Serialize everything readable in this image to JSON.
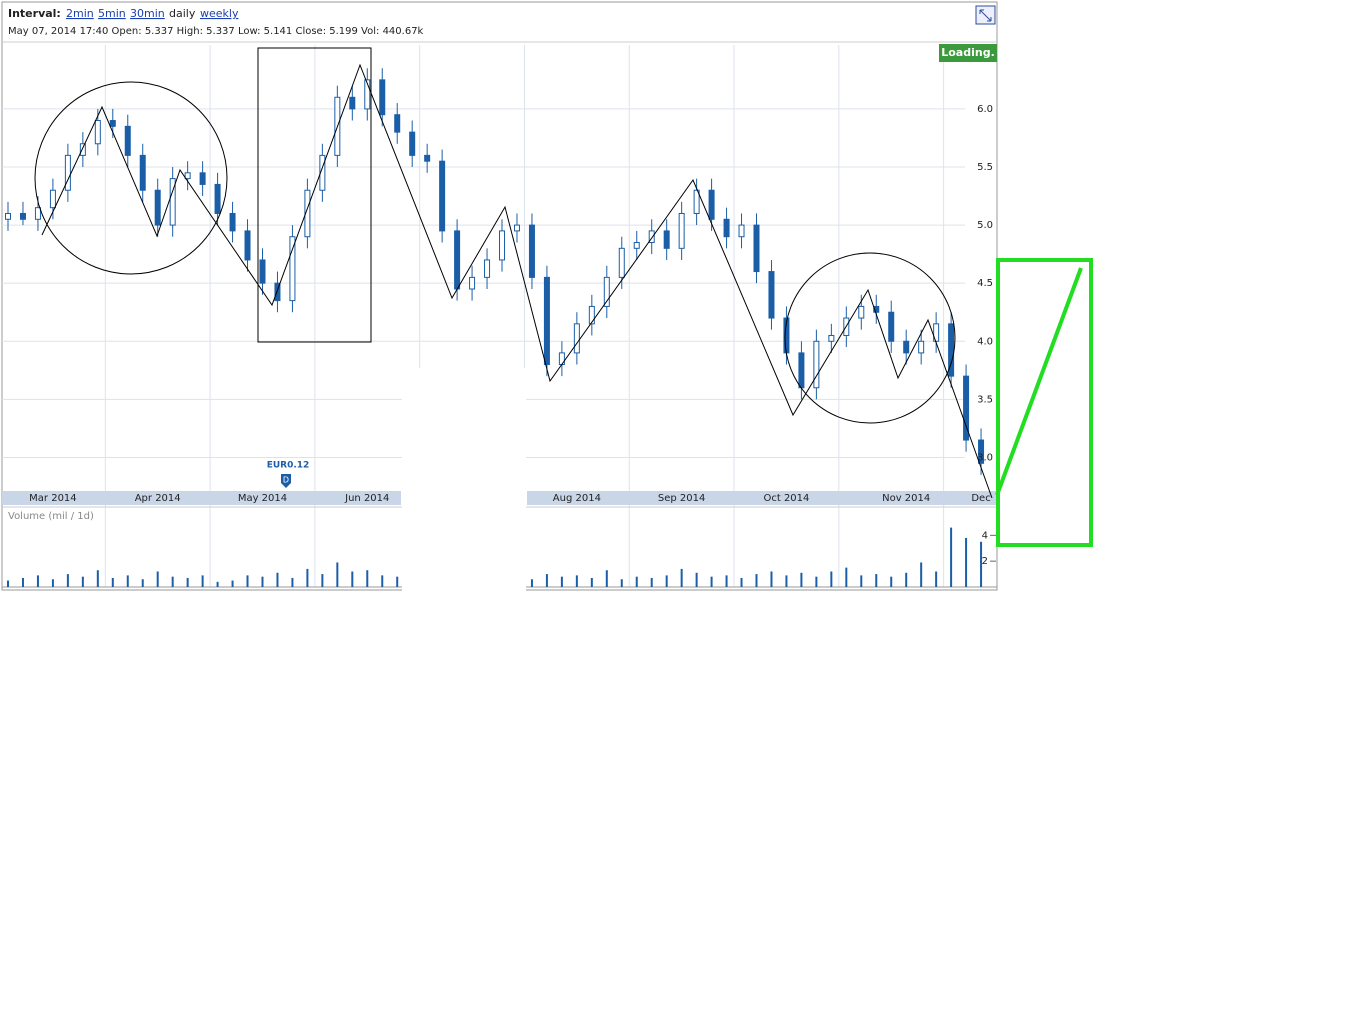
{
  "header": {
    "interval_label": "Interval:",
    "intervals": [
      "2min",
      "5min",
      "30min",
      "daily",
      "weekly"
    ],
    "info": "May 07, 2014 17:40 Open: 5.337 High: 5.337 Low: 5.141 Close: 5.199 Vol: 440.67k",
    "status": "Loading.",
    "dividend": {
      "label": "EUR0.12",
      "badge": "D"
    }
  },
  "chart_data": [
    {
      "type": "candlestick",
      "color": "#1a5ea8",
      "grid": true,
      "categories": [
        null,
        null,
        null,
        "Mar 2014",
        null,
        null,
        null,
        null,
        null,
        null,
        "Apr 2014",
        null,
        null,
        null,
        null,
        null,
        null,
        "May 2014",
        null,
        null,
        null,
        null,
        null,
        null,
        "Jun 2014",
        null,
        null,
        null,
        null,
        null,
        null,
        null,
        null,
        null,
        null,
        null,
        null,
        null,
        "Aug 2014",
        null,
        null,
        null,
        null,
        null,
        null,
        "Sep 2014",
        null,
        null,
        null,
        null,
        null,
        null,
        "Oct 2014",
        null,
        null,
        null,
        null,
        null,
        null,
        null,
        "Nov 2014",
        null,
        null,
        null,
        null,
        "Dec"
      ],
      "open": [
        5.05,
        5.1,
        5.05,
        5.15,
        5.3,
        5.6,
        5.7,
        5.9,
        5.85,
        5.6,
        5.3,
        5.0,
        5.4,
        5.45,
        5.35,
        5.1,
        4.95,
        4.7,
        4.5,
        4.35,
        4.9,
        5.3,
        5.6,
        6.1,
        6.0,
        6.25,
        5.95,
        5.8,
        5.6,
        5.55,
        4.95,
        4.45,
        4.55,
        4.7,
        4.95,
        5.0,
        4.55,
        3.8,
        3.9,
        4.15,
        4.3,
        4.55,
        4.8,
        4.85,
        4.95,
        4.8,
        5.1,
        5.3,
        5.05,
        4.9,
        5.0,
        4.6,
        4.2,
        3.9,
        3.6,
        4.0,
        4.05,
        4.2,
        4.3,
        4.25,
        4.0,
        3.9,
        4.0,
        4.15,
        3.7,
        3.15
      ],
      "high": [
        5.2,
        5.2,
        5.25,
        5.4,
        5.7,
        5.8,
        6.0,
        6.0,
        5.95,
        5.7,
        5.4,
        5.5,
        5.55,
        5.55,
        5.45,
        5.2,
        5.05,
        4.8,
        4.6,
        5.0,
        5.4,
        5.7,
        6.2,
        6.2,
        6.35,
        6.35,
        6.05,
        5.9,
        5.7,
        5.65,
        5.05,
        4.65,
        4.8,
        5.05,
        5.1,
        5.1,
        4.65,
        4.0,
        4.25,
        4.4,
        4.65,
        4.9,
        4.95,
        5.05,
        5.05,
        5.2,
        5.4,
        5.4,
        5.15,
        5.1,
        5.1,
        4.7,
        4.3,
        4.0,
        4.1,
        4.15,
        4.3,
        4.4,
        4.4,
        4.35,
        4.1,
        4.1,
        4.25,
        4.25,
        3.8,
        3.25
      ],
      "low": [
        4.95,
        5.0,
        4.95,
        5.05,
        5.2,
        5.5,
        5.6,
        5.75,
        5.5,
        5.2,
        4.9,
        4.9,
        5.3,
        5.25,
        5.0,
        4.85,
        4.6,
        4.4,
        4.25,
        4.25,
        4.8,
        5.2,
        5.5,
        5.9,
        5.9,
        5.85,
        5.7,
        5.5,
        5.45,
        4.85,
        4.35,
        4.35,
        4.45,
        4.6,
        4.85,
        4.45,
        3.7,
        3.7,
        3.8,
        4.05,
        4.2,
        4.45,
        4.7,
        4.75,
        4.7,
        4.7,
        5.0,
        4.95,
        4.8,
        4.8,
        4.5,
        4.1,
        3.8,
        3.5,
        3.5,
        3.9,
        3.95,
        4.1,
        4.15,
        3.9,
        3.8,
        3.8,
        3.9,
        3.6,
        3.05,
        2.85
      ],
      "close": [
        5.1,
        5.05,
        5.15,
        5.3,
        5.6,
        5.7,
        5.9,
        5.85,
        5.6,
        5.3,
        5.0,
        5.4,
        5.45,
        5.35,
        5.1,
        4.95,
        4.7,
        4.5,
        4.35,
        4.9,
        5.3,
        5.6,
        6.1,
        6.0,
        6.25,
        5.95,
        5.8,
        5.6,
        5.55,
        4.95,
        4.45,
        4.55,
        4.7,
        4.95,
        5.0,
        4.55,
        3.8,
        3.9,
        4.15,
        4.3,
        4.55,
        4.8,
        4.85,
        4.95,
        4.8,
        5.1,
        5.3,
        5.05,
        4.9,
        5.0,
        4.6,
        4.2,
        3.9,
        3.6,
        4.0,
        4.05,
        4.2,
        4.3,
        4.25,
        4.0,
        3.9,
        4.0,
        4.15,
        3.7,
        3.15,
        2.95
      ],
      "ylim": [
        2.72,
        6.55
      ],
      "yticks": [
        {
          "value": 3,
          "label": "3.0"
        },
        {
          "value": 3.5,
          "label": "3.5"
        },
        {
          "value": 4,
          "label": "4.0"
        },
        {
          "value": 4.5,
          "label": "4.5"
        },
        {
          "value": 5,
          "label": "5.0"
        },
        {
          "value": 5.5,
          "label": "5.5"
        },
        {
          "value": 6,
          "label": "6.0"
        }
      ]
    },
    {
      "type": "bar",
      "title": "Volume (mil / 1d)",
      "color": "#1a5ea8",
      "values": [
        0.5,
        0.7,
        0.9,
        0.6,
        1.0,
        0.8,
        1.3,
        0.7,
        0.9,
        0.6,
        1.2,
        0.8,
        0.7,
        0.9,
        0.4,
        0.5,
        0.9,
        0.8,
        1.1,
        0.7,
        1.4,
        1.0,
        1.9,
        1.2,
        1.3,
        0.9,
        0.8,
        null,
        null,
        null,
        null,
        null,
        null,
        null,
        null,
        0.6,
        1.0,
        0.8,
        0.9,
        0.7,
        1.3,
        0.6,
        0.8,
        0.7,
        0.9,
        1.4,
        1.1,
        0.8,
        0.9,
        0.7,
        1.0,
        1.2,
        0.9,
        1.1,
        0.8,
        1.2,
        1.5,
        0.9,
        1.0,
        0.8,
        1.1,
        1.9,
        1.2,
        4.6,
        3.8,
        3.5
      ],
      "ylim": [
        0,
        4.8
      ],
      "yticks": [
        2,
        4
      ]
    }
  ]
}
